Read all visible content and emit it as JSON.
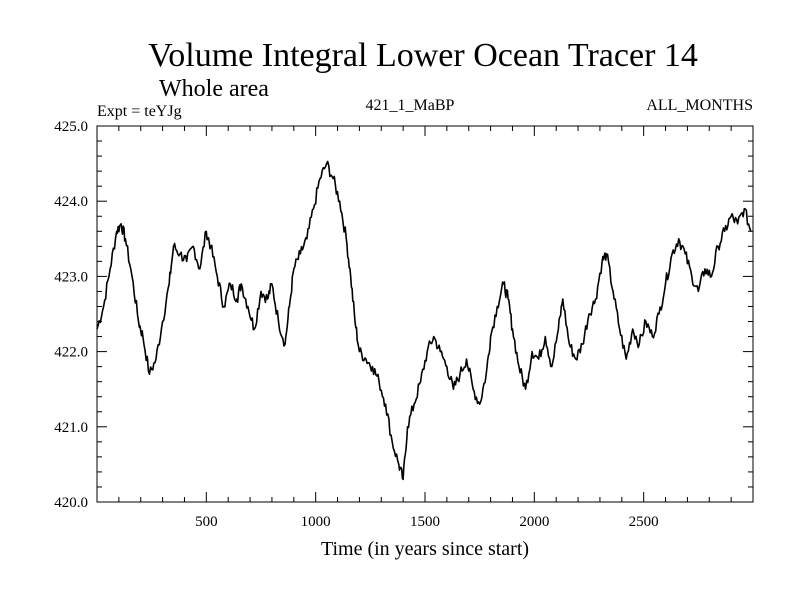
{
  "chart_data": {
    "type": "line",
    "title": "Volume Integral Lower Ocean Tracer 14",
    "subtitle": "Whole area",
    "header_left": "Expt = teYJg",
    "header_center": "421_1_MaBP",
    "header_right": "ALL_MONTHS",
    "xlabel": "Time (in years since start)",
    "ylabel": "",
    "xlim": [
      0,
      3000
    ],
    "ylim": [
      420.0,
      425.0
    ],
    "x_ticks": [
      500,
      1000,
      1500,
      2000,
      2500
    ],
    "x_tick_labels": [
      "500",
      "1000",
      "1500",
      "2000",
      "2500"
    ],
    "y_ticks": [
      420.0,
      421.0,
      422.0,
      423.0,
      424.0,
      425.0
    ],
    "y_tick_labels": [
      "420.0",
      "421.0",
      "422.0",
      "423.0",
      "424.0",
      "425.0"
    ],
    "series": [
      {
        "name": "Tracer 14",
        "x": [
          0,
          30,
          60,
          90,
          110,
          130,
          160,
          190,
          210,
          240,
          270,
          300,
          330,
          350,
          380,
          410,
          440,
          470,
          500,
          520,
          550,
          580,
          610,
          640,
          660,
          690,
          720,
          750,
          780,
          800,
          830,
          860,
          880,
          900,
          930,
          960,
          990,
          1020,
          1050,
          1080,
          1110,
          1140,
          1160,
          1180,
          1200,
          1230,
          1260,
          1290,
          1320,
          1350,
          1380,
          1400,
          1420,
          1450,
          1480,
          1510,
          1540,
          1570,
          1600,
          1630,
          1660,
          1690,
          1720,
          1750,
          1780,
          1800,
          1830,
          1860,
          1880,
          1900,
          1930,
          1960,
          1990,
          2020,
          2050,
          2080,
          2110,
          2130,
          2160,
          2190,
          2220,
          2250,
          2280,
          2310,
          2330,
          2360,
          2390,
          2420,
          2450,
          2480,
          2510,
          2540,
          2570,
          2600,
          2630,
          2660,
          2690,
          2720,
          2750,
          2780,
          2810,
          2840,
          2870,
          2900,
          2930,
          2960,
          2990
        ],
        "values": [
          422.3,
          422.6,
          423.1,
          423.6,
          423.7,
          423.5,
          423.0,
          422.4,
          422.2,
          421.7,
          421.9,
          422.4,
          422.9,
          423.4,
          423.3,
          423.2,
          423.4,
          423.1,
          423.6,
          423.4,
          423.0,
          422.6,
          422.9,
          422.7,
          422.9,
          422.6,
          422.3,
          422.8,
          422.7,
          422.9,
          422.4,
          422.1,
          422.6,
          423.1,
          423.3,
          423.5,
          423.9,
          424.3,
          424.5,
          424.3,
          424.0,
          423.5,
          423.0,
          422.4,
          422.0,
          421.9,
          421.8,
          421.6,
          421.3,
          420.8,
          420.5,
          420.3,
          421.0,
          421.3,
          421.6,
          422.0,
          422.2,
          422.0,
          421.8,
          421.5,
          421.7,
          421.9,
          421.5,
          421.3,
          421.7,
          422.2,
          422.6,
          422.9,
          422.7,
          422.3,
          421.8,
          421.5,
          422.0,
          421.9,
          422.2,
          421.8,
          422.3,
          422.7,
          422.1,
          421.9,
          422.1,
          422.5,
          422.7,
          423.2,
          423.3,
          422.8,
          422.3,
          421.9,
          422.3,
          422.1,
          422.4,
          422.2,
          422.5,
          422.9,
          423.3,
          423.5,
          423.3,
          423.0,
          422.8,
          423.1,
          423.0,
          423.4,
          423.6,
          423.8,
          423.7,
          423.9,
          423.6
        ]
      }
    ]
  }
}
